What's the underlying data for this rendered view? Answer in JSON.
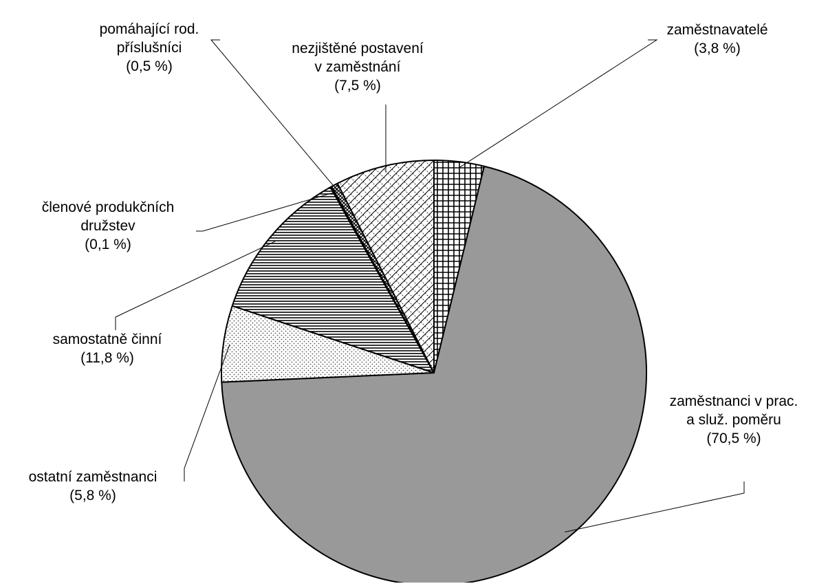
{
  "chart_data": {
    "type": "pie",
    "title": "",
    "start_angle_deg": 0,
    "direction": "clockwise",
    "slices": [
      {
        "label_lines": [
          "zaměstnavatelé",
          "(3,8 %)"
        ],
        "value": 3.8,
        "fill": "crosshatch"
      },
      {
        "label_lines": [
          "zaměstnanci v prac.",
          "a služ. poměru",
          "(70,5 %)"
        ],
        "value": 70.5,
        "fill": "#999999"
      },
      {
        "label_lines": [
          "ostatní zaměstnanci",
          "(5,8 %)"
        ],
        "value": 5.8,
        "fill": "dots"
      },
      {
        "label_lines": [
          "samostatně činní",
          "(11,8 %)"
        ],
        "value": 11.8,
        "fill": "horizontal-lines"
      },
      {
        "label_lines": [
          "členové produkčních",
          "družstev",
          "(0,1 %)"
        ],
        "value": 0.1,
        "fill": "#ffffff"
      },
      {
        "label_lines": [
          "pomáhající rod.",
          "příslušníci",
          "(0,5 %)"
        ],
        "value": 0.5,
        "fill": "diagonal-grid"
      },
      {
        "label_lines": [
          "nezjištěné postavení",
          "v zaměstnání",
          "(7,5 %)"
        ],
        "value": 7.5,
        "fill": "zigzag"
      }
    ],
    "legend": "none",
    "labels": "outside-with-leader-lines"
  }
}
